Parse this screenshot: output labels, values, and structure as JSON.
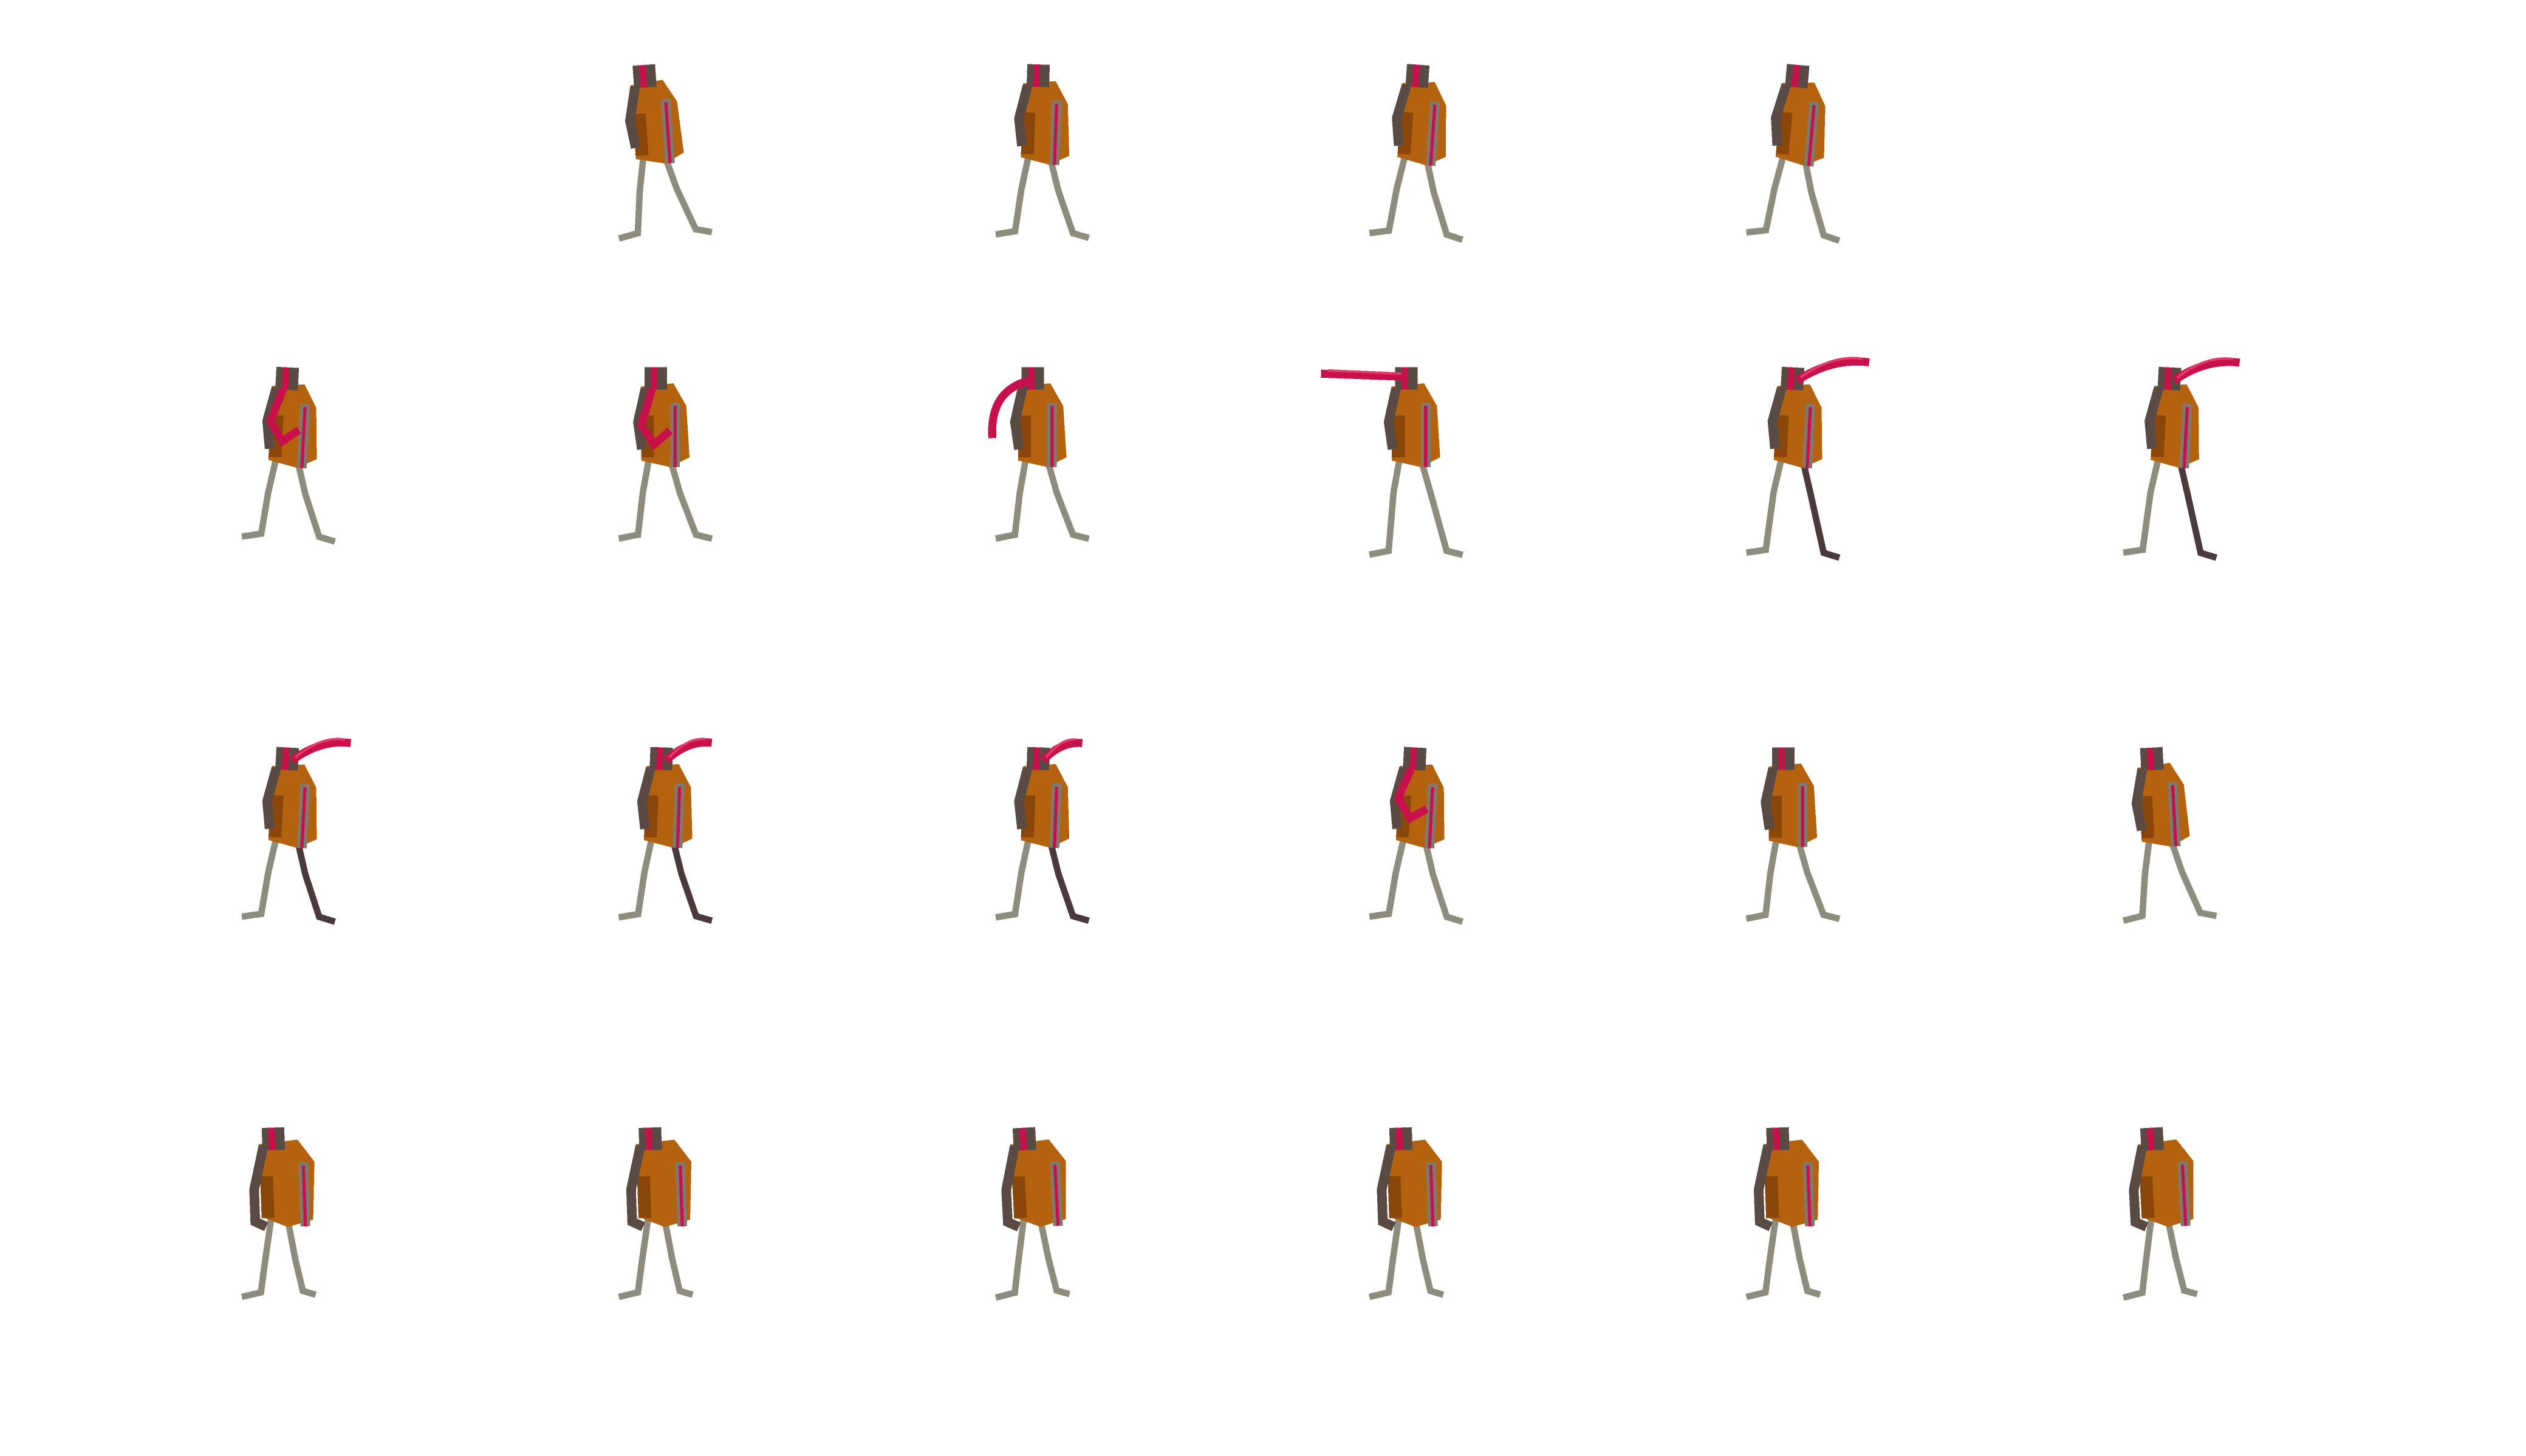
{
  "sheet": {
    "background": "#ffffff",
    "columns": 6,
    "rows": 4,
    "palette": {
      "robe": "#b5620f",
      "robe_dark": "#8a4709",
      "scarf": "#c8104a",
      "scarf_light": "#e8386a",
      "skin": "#5a4a44",
      "armor": "#7d7a72",
      "leg": "#8e8c7c",
      "leg_dark": "#4a3a3c",
      "stripe": "#c8104a"
    },
    "frames": [
      {
        "pose": "empty"
      },
      {
        "pose": "idle",
        "tilt": -4
      },
      {
        "pose": "idle",
        "tilt": 2
      },
      {
        "pose": "idle",
        "tilt": 4
      },
      {
        "pose": "idle",
        "tilt": 5
      },
      {
        "pose": "empty"
      },
      {
        "pose": "idle",
        "tilt": 3,
        "scarf": 0.2
      },
      {
        "pose": "idle",
        "tilt": 0,
        "scarf": 0.3
      },
      {
        "pose": "scarf-curl",
        "tilt": 0,
        "scarf": 0.5
      },
      {
        "pose": "scarf-left",
        "tilt": 0,
        "scarf": 1.0
      },
      {
        "pose": "scarf-right",
        "tilt": 3,
        "scarf": 0.9
      },
      {
        "pose": "scarf-right",
        "tilt": 3,
        "scarf": 0.8
      },
      {
        "pose": "scarf-right",
        "tilt": 3,
        "scarf": 0.7
      },
      {
        "pose": "scarf-right",
        "tilt": 2,
        "scarf": 0.5
      },
      {
        "pose": "scarf-right",
        "tilt": 2,
        "scarf": 0.4
      },
      {
        "pose": "idle",
        "tilt": 3,
        "scarf": 0.1
      },
      {
        "pose": "idle",
        "tilt": 0,
        "scarf": 0.0
      },
      {
        "pose": "idle",
        "tilt": -3,
        "scarf": 0.0
      },
      {
        "pose": "hunch",
        "tilt": -2
      },
      {
        "pose": "hunch",
        "tilt": -2
      },
      {
        "pose": "hunch",
        "tilt": -3
      },
      {
        "pose": "hunch",
        "tilt": -2
      },
      {
        "pose": "hunch",
        "tilt": -2
      },
      {
        "pose": "hunch",
        "tilt": -3
      }
    ]
  }
}
